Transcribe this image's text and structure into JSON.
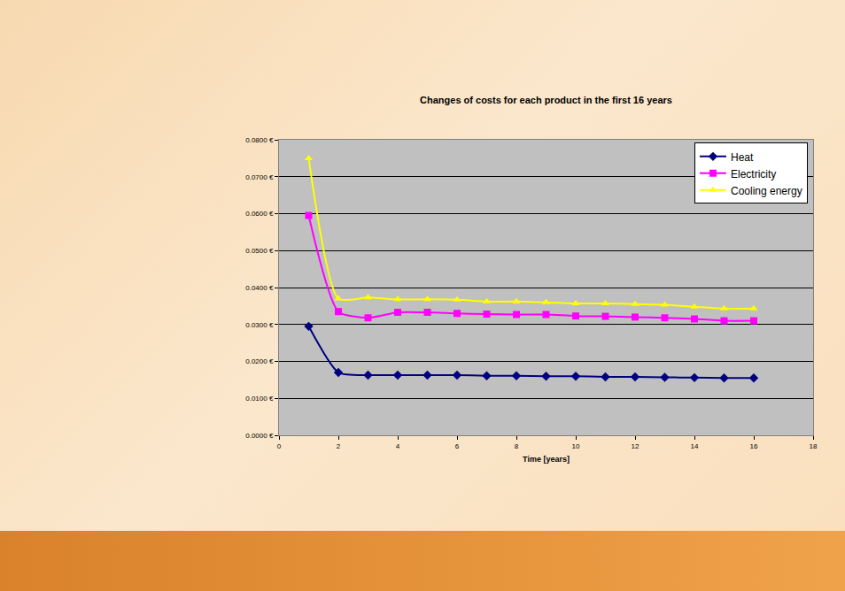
{
  "chart_data": {
    "type": "line",
    "title": "Changes of costs for each product in the first 16 years",
    "x_label": "Time [years]",
    "x": [
      1,
      2,
      3,
      4,
      5,
      6,
      7,
      8,
      9,
      10,
      11,
      12,
      13,
      14,
      15,
      16
    ],
    "series": [
      {
        "name": "Heat",
        "color": "#000080",
        "marker": "diamond",
        "line_style": "solid",
        "values": [
          0.0295,
          0.017,
          0.0163,
          0.0163,
          0.0163,
          0.0163,
          0.0161,
          0.0161,
          0.016,
          0.016,
          0.0158,
          0.0158,
          0.0157,
          0.0156,
          0.0155,
          0.0155
        ]
      },
      {
        "name": "Electricity",
        "color": "#FF00FF",
        "marker": "square",
        "line_style": "solid",
        "values": [
          0.0595,
          0.0335,
          0.0318,
          0.0333,
          0.0333,
          0.033,
          0.0328,
          0.0327,
          0.0327,
          0.0323,
          0.0322,
          0.032,
          0.0318,
          0.0315,
          0.031,
          0.031
        ]
      },
      {
        "name": "Cooling energy",
        "color": "#FFFF00",
        "marker": "triangle-up",
        "line_style": "solid",
        "values": [
          0.075,
          0.037,
          0.0373,
          0.0368,
          0.0368,
          0.0367,
          0.0362,
          0.0362,
          0.036,
          0.0357,
          0.0357,
          0.0355,
          0.0353,
          0.0348,
          0.0343,
          0.0343
        ]
      }
    ],
    "xlim": [
      0,
      18
    ],
    "xticks": [
      0,
      2,
      4,
      6,
      8,
      10,
      12,
      14,
      16,
      18
    ],
    "ylim": [
      0,
      0.08
    ],
    "yticks": [
      {
        "value": 0,
        "label": "0.0000 €"
      },
      {
        "value": 0.01,
        "label": "0.0100 €"
      },
      {
        "value": 0.02,
        "label": "0.0200 €"
      },
      {
        "value": 0.03,
        "label": "0.0300 €"
      },
      {
        "value": 0.04,
        "label": "0.0400 €"
      },
      {
        "value": 0.05,
        "label": "0.0500 €"
      },
      {
        "value": 0.06,
        "label": "0.0600 €"
      },
      {
        "value": 0.07,
        "label": "0.0700 €"
      },
      {
        "value": 0.08,
        "label": "0.0800 €"
      }
    ],
    "grid": true,
    "legend": "top right"
  }
}
